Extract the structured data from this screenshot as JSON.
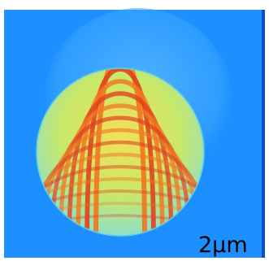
{
  "scale_bar": {
    "label": "2µm"
  }
}
